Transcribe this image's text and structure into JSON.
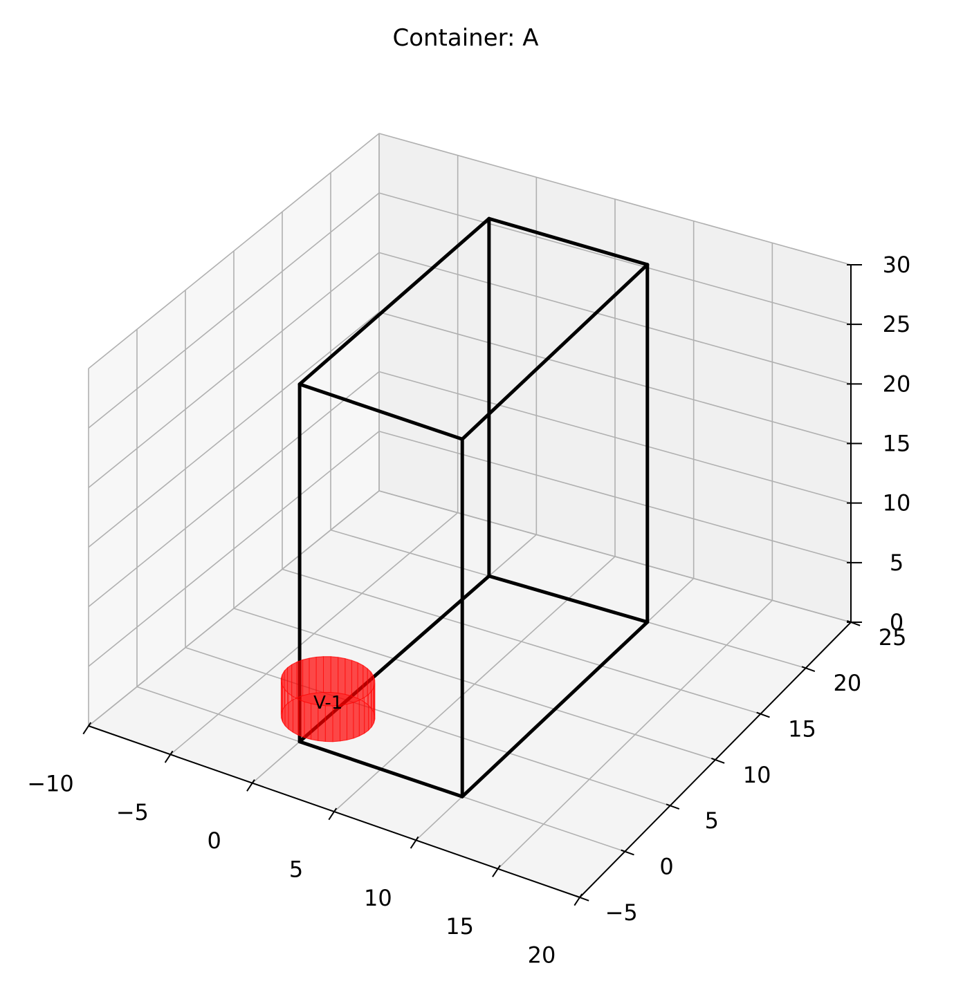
{
  "chart_data": {
    "type": "3d-wireframe",
    "title": "Container: A",
    "xlabel": "",
    "ylabel": "",
    "zlabel": "",
    "grid": true,
    "xlim": [
      -10,
      20
    ],
    "ylim": [
      -5,
      25
    ],
    "zlim": [
      0,
      30
    ],
    "x_ticks": [
      "−10",
      "−5",
      "0",
      "5",
      "10",
      "15",
      "20"
    ],
    "y_ticks": [
      "−5",
      "0",
      "5",
      "10",
      "15",
      "20",
      "25"
    ],
    "z_ticks": [
      "0",
      "5",
      "10",
      "15",
      "20",
      "25",
      "30"
    ],
    "container": {
      "name": "A",
      "color": "#000000",
      "x": [
        0,
        10
      ],
      "y": [
        0,
        20
      ],
      "z": [
        0,
        30
      ]
    },
    "items": [
      {
        "label": "V-1",
        "shape": "cylinder",
        "color": "#ff0000",
        "center": [
          0,
          3
        ],
        "radius": 2.5,
        "z": [
          0,
          3
        ]
      }
    ]
  }
}
